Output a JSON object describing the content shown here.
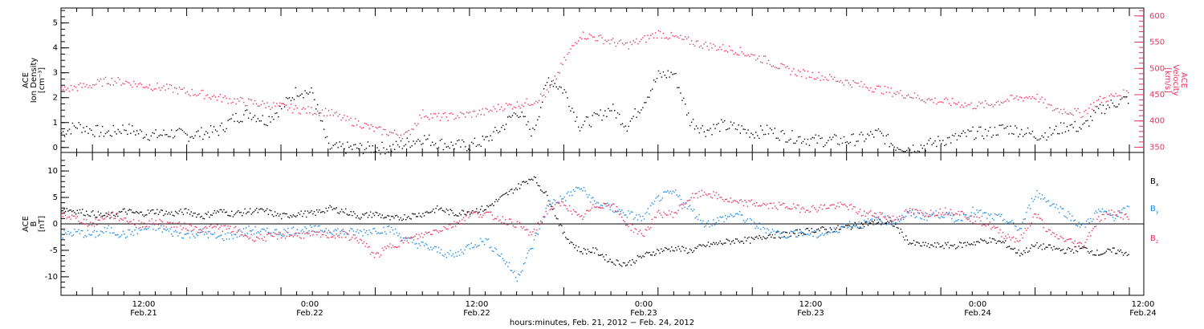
{
  "colors": {
    "black": "#000000",
    "pink": "#e8335f",
    "blue": "#1a8ae6",
    "axis": "#000000"
  },
  "chart_data": [
    {
      "type": "scatter",
      "panel": "top",
      "left_axis_label": [
        "ACE",
        "Ion Density",
        "[cm⁻³]"
      ],
      "right_axis_label": [
        "ACE",
        "Velocity",
        "[km/s]"
      ],
      "ylim_left": [
        -0.2,
        5.6
      ],
      "ylim_right": [
        340,
        615
      ],
      "yticks_left": [
        "0",
        "1",
        "2",
        "3",
        "4",
        "5"
      ],
      "yticks_right": [
        "350",
        "400",
        "450",
        "500",
        "550",
        "600"
      ],
      "series": [
        {
          "color": "black",
          "axis": "left",
          "x": [
            0,
            2,
            4,
            6,
            8,
            10,
            12,
            14,
            16,
            18,
            20,
            22,
            24,
            26,
            28,
            30,
            32,
            34,
            36,
            38,
            40,
            42,
            44,
            46,
            48,
            50,
            52,
            54,
            56,
            58,
            60,
            62,
            64,
            66,
            68,
            70,
            72,
            74,
            76,
            78,
            80,
            82,
            84,
            86,
            88,
            90,
            92,
            94,
            96,
            98,
            100,
            102,
            104,
            106,
            108,
            110,
            112,
            114,
            116,
            118,
            120,
            122,
            124,
            126,
            128,
            130,
            132,
            134,
            136
          ],
          "y": [
            0.6,
            0.9,
            0.7,
            0.6,
            0.8,
            0.6,
            0.5,
            0.6,
            0.5,
            0.6,
            0.7,
            1.2,
            1.4,
            1.1,
            1.6,
            2.3,
            2.2,
            0.0,
            0.0,
            0.0,
            0.0,
            0.0,
            0.2,
            0.4,
            0.2,
            0.1,
            0.1,
            0.3,
            0.8,
            1.5,
            0.6,
            2.8,
            2.3,
            0.9,
            1.2,
            1.6,
            0.9,
            1.8,
            2.9,
            3.0,
            1.1,
            0.7,
            0.9,
            0.8,
            0.6,
            0.7,
            0.5,
            0.4,
            0.3,
            0.3,
            0.3,
            0.4,
            0.6,
            0.1,
            0.0,
            0.1,
            0.3,
            0.4,
            0.6,
            0.6,
            0.8,
            0.7,
            0.5,
            0.6,
            0.9,
            0.8,
            1.5,
            1.8,
            2.0
          ]
        },
        {
          "color": "pink",
          "axis": "right",
          "x": [
            0,
            2,
            4,
            6,
            8,
            10,
            12,
            14,
            16,
            18,
            20,
            22,
            24,
            26,
            28,
            30,
            32,
            34,
            36,
            38,
            40,
            42,
            44,
            46,
            48,
            50,
            52,
            54,
            56,
            58,
            60,
            62,
            64,
            66,
            68,
            70,
            72,
            74,
            76,
            78,
            80,
            82,
            84,
            86,
            88,
            90,
            92,
            94,
            96,
            98,
            100,
            102,
            104,
            106,
            108,
            110,
            112,
            114,
            116,
            118,
            120,
            122,
            124,
            126,
            128,
            130,
            132,
            134,
            136
          ],
          "y": [
            460,
            465,
            470,
            478,
            475,
            470,
            466,
            462,
            456,
            452,
            445,
            440,
            436,
            432,
            428,
            423,
            420,
            418,
            404,
            396,
            384,
            378,
            374,
            415,
            408,
            410,
            414,
            418,
            428,
            432,
            438,
            455,
            515,
            565,
            560,
            552,
            545,
            555,
            568,
            560,
            552,
            545,
            540,
            535,
            525,
            515,
            500,
            492,
            488,
            482,
            475,
            468,
            462,
            455,
            450,
            442,
            438,
            435,
            430,
            432,
            440,
            445,
            448,
            425,
            420,
            415,
            440,
            448,
            455
          ]
        }
      ]
    },
    {
      "type": "scatter",
      "panel": "bottom",
      "left_axis_label": [
        "ACE",
        "B",
        "[nT]"
      ],
      "ylim": [
        -13.5,
        13.5
      ],
      "yticks": [
        "-10",
        "-5",
        "0",
        "5",
        "10"
      ],
      "legend": [
        {
          "label": "B",
          "sub": "x",
          "color": "black"
        },
        {
          "label": "B",
          "sub": "y",
          "color": "blue"
        },
        {
          "label": "B",
          "sub": "z",
          "color": "pink"
        }
      ],
      "series": [
        {
          "color": "black",
          "x": [
            0,
            2,
            4,
            6,
            8,
            10,
            12,
            14,
            16,
            18,
            20,
            22,
            24,
            26,
            28,
            30,
            32,
            34,
            36,
            38,
            40,
            42,
            44,
            46,
            48,
            50,
            52,
            54,
            56,
            58,
            60,
            62,
            64,
            66,
            68,
            70,
            72,
            74,
            76,
            78,
            80,
            82,
            84,
            86,
            88,
            90,
            92,
            94,
            96,
            98,
            100,
            102,
            104,
            106,
            108,
            110,
            112,
            114,
            116,
            118,
            120,
            122,
            124,
            126,
            128,
            130,
            132,
            134,
            136
          ],
          "y": [
            3.0,
            2.5,
            2.0,
            1.5,
            2.5,
            2.0,
            2.5,
            2.0,
            2.5,
            1.5,
            2.5,
            2.0,
            2.5,
            2.5,
            1.5,
            2.0,
            2.0,
            3.0,
            2.5,
            1.5,
            2.0,
            1.0,
            1.5,
            2.0,
            3.0,
            2.0,
            2.5,
            3.0,
            5.0,
            7.0,
            9.0,
            5.0,
            -2.0,
            -5.0,
            -5.0,
            -7.0,
            -7.5,
            -6.0,
            -5.0,
            -4.5,
            -5.0,
            -4.0,
            -3.5,
            -3.0,
            -3.0,
            -2.0,
            -2.0,
            -1.5,
            -1.0,
            -1.0,
            -0.5,
            0.0,
            0.5,
            0.0,
            -3.5,
            -4.0,
            -4.0,
            -4.0,
            -3.5,
            -3.0,
            -3.5,
            -5.5,
            -4.0,
            -4.5,
            -5.0,
            -4.5,
            -5.5,
            -5.0,
            -5.5
          ]
        },
        {
          "color": "blue",
          "x": [
            0,
            2,
            4,
            6,
            8,
            10,
            12,
            14,
            16,
            18,
            20,
            22,
            24,
            26,
            28,
            30,
            32,
            34,
            36,
            38,
            40,
            42,
            44,
            46,
            48,
            50,
            52,
            54,
            56,
            58,
            60,
            62,
            64,
            66,
            68,
            70,
            72,
            74,
            76,
            78,
            80,
            82,
            84,
            86,
            88,
            90,
            92,
            94,
            96,
            98,
            100,
            102,
            104,
            106,
            108,
            110,
            112,
            114,
            116,
            118,
            120,
            122,
            124,
            126,
            128,
            130,
            132,
            134,
            136
          ],
          "y": [
            -2.0,
            -1.5,
            -2.0,
            -1.0,
            -2.0,
            -1.0,
            -0.5,
            -1.5,
            -2.0,
            -1.5,
            -2.5,
            -2.0,
            -1.0,
            -1.5,
            -1.5,
            -1.0,
            -1.0,
            -1.0,
            -1.5,
            -1.5,
            -1.0,
            -1.0,
            -3.0,
            -4.0,
            -5.0,
            -6.0,
            -4.0,
            -3.0,
            -6.0,
            -10.0,
            -4.0,
            4.0,
            5.0,
            7.0,
            4.0,
            3.0,
            2.0,
            1.0,
            5.0,
            6.0,
            3.0,
            0.0,
            1.0,
            2.0,
            0.0,
            -1.0,
            -2.0,
            -1.5,
            -2.0,
            -1.5,
            0.0,
            0.0,
            1.0,
            0.5,
            2.0,
            1.5,
            2.0,
            1.0,
            2.5,
            1.5,
            1.0,
            -1.0,
            6.0,
            4.0,
            2.0,
            -0.5,
            2.5,
            1.5,
            3.0
          ]
        },
        {
          "color": "pink",
          "x": [
            0,
            2,
            4,
            6,
            8,
            10,
            12,
            14,
            16,
            18,
            20,
            22,
            24,
            26,
            28,
            30,
            32,
            34,
            36,
            38,
            40,
            42,
            44,
            46,
            48,
            50,
            52,
            54,
            56,
            58,
            60,
            62,
            64,
            66,
            68,
            70,
            72,
            74,
            76,
            78,
            80,
            82,
            84,
            86,
            88,
            90,
            92,
            94,
            96,
            98,
            100,
            102,
            104,
            106,
            108,
            110,
            112,
            114,
            116,
            118,
            120,
            122,
            124,
            126,
            128,
            130,
            132,
            134,
            136
          ],
          "y": [
            2.0,
            1.0,
            0.0,
            2.0,
            1.0,
            0.0,
            0.5,
            0.0,
            -0.5,
            -1.0,
            -0.5,
            -1.0,
            -2.5,
            -2.5,
            -2.0,
            -2.0,
            -2.0,
            -2.0,
            -2.0,
            -3.0,
            -6.0,
            -4.0,
            -3.0,
            -2.0,
            -1.0,
            0.0,
            2.0,
            2.0,
            1.0,
            0.0,
            -2.0,
            3.0,
            4.0,
            1.0,
            3.5,
            4.0,
            0.0,
            -2.0,
            2.0,
            2.0,
            5.0,
            6.0,
            5.0,
            4.0,
            4.0,
            3.5,
            3.5,
            3.0,
            3.0,
            3.5,
            3.5,
            2.0,
            2.0,
            1.0,
            2.5,
            2.0,
            2.5,
            2.5,
            1.0,
            0.0,
            -2.0,
            -3.0,
            2.0,
            -2.0,
            -3.0,
            -4.0,
            1.0,
            2.5,
            1.0
          ]
        }
      ]
    }
  ],
  "x_axis": {
    "tick_labels": [
      {
        "time": "12:00",
        "date": "Feb.21"
      },
      {
        "time": "0:00",
        "date": "Feb.22"
      },
      {
        "time": "12:00",
        "date": "Feb.22"
      },
      {
        "time": "0:00",
        "date": "Feb.23"
      },
      {
        "time": "12:00",
        "date": "Feb.23"
      },
      {
        "time": "0:00",
        "date": "Feb.24"
      },
      {
        "time": "12:00",
        "date": "Feb.24"
      }
    ],
    "title": "hours:minutes, Feb. 21, 2012 − Feb. 24, 2012"
  }
}
